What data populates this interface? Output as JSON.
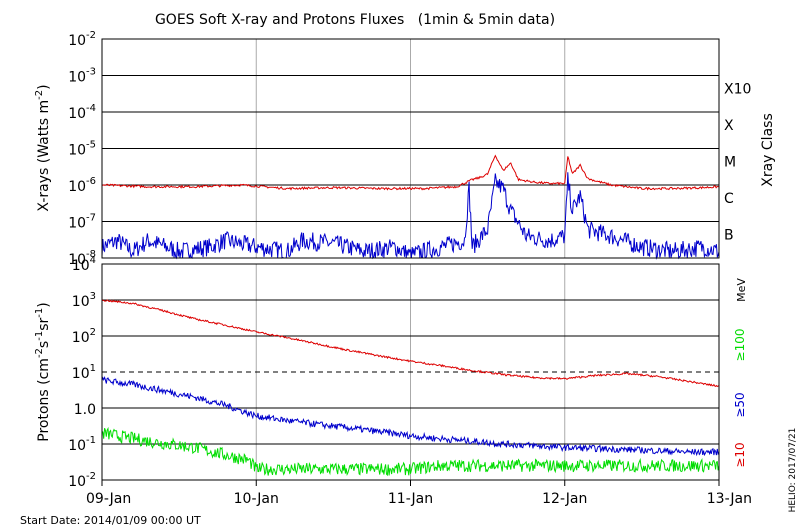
{
  "chart_data": [
    {
      "type": "line",
      "title": "GOES Soft X-ray and Protons Fluxes   (1min & 5min data)",
      "ylabel": "X-rays (Watts m^-2)",
      "y_scale": "log",
      "ylim": [
        1e-08,
        0.01
      ],
      "y_ticks": [
        {
          "base": "10",
          "exp": "-2"
        },
        {
          "base": "10",
          "exp": "-3"
        },
        {
          "base": "10",
          "exp": "-4"
        },
        {
          "base": "10",
          "exp": "-5"
        },
        {
          "base": "10",
          "exp": "-6"
        },
        {
          "base": "10",
          "exp": "-7"
        },
        {
          "base": "10",
          "exp": "-8"
        }
      ],
      "right_axis_label": "Xray Class",
      "class_labels": [
        {
          "label": "X10",
          "flux": 0.001
        },
        {
          "label": "X",
          "flux": 0.0001
        },
        {
          "label": "M",
          "flux": 1e-05
        },
        {
          "label": "C",
          "flux": 1e-06
        },
        {
          "label": "B",
          "flux": 1e-07
        }
      ],
      "grid": "horizontal at each decade, vertical at each day",
      "series": [
        {
          "color": "#dd0000",
          "x": [
            0,
            0.3,
            0.6,
            0.9,
            1.2,
            1.5,
            1.8,
            2.1,
            2.3,
            2.4,
            2.45,
            2.5,
            2.55,
            2.6,
            2.65,
            2.7,
            2.8,
            2.9,
            3.0,
            3.02,
            3.05,
            3.1,
            3.15,
            3.2,
            3.3,
            3.5,
            3.7,
            3.9,
            4.0
          ],
          "y": [
            1e-06,
            9e-07,
            9e-07,
            1e-06,
            8e-07,
            8.5e-07,
            8e-07,
            8e-07,
            9e-07,
            1.4e-06,
            1.6e-06,
            2e-06,
            6.5e-06,
            2.5e-06,
            4e-06,
            1.4e-06,
            1.2e-06,
            1.1e-06,
            1.1e-06,
            6e-06,
            2e-06,
            3.5e-06,
            1.5e-06,
            1.3e-06,
            1e-06,
            8e-07,
            8e-07,
            8.5e-07,
            9e-07
          ]
        },
        {
          "color": "#0000cc",
          "x": [
            0,
            0.1,
            0.2,
            0.3,
            0.5,
            0.7,
            0.8,
            1.0,
            1.2,
            1.3,
            1.5,
            1.7,
            1.9,
            2.0,
            2.2,
            2.35,
            2.38,
            2.4,
            2.5,
            2.55,
            2.6,
            2.65,
            2.75,
            2.9,
            3.0,
            3.02,
            3.05,
            3.1,
            3.15,
            3.3,
            3.5,
            3.7,
            3.9,
            4.0
          ],
          "y": [
            2e-08,
            3e-08,
            1.5e-08,
            3e-08,
            1.5e-08,
            2e-08,
            3e-08,
            2e-08,
            1.5e-08,
            3e-08,
            2.5e-08,
            1.5e-08,
            2e-08,
            1.2e-08,
            2e-08,
            3e-08,
            8e-07,
            2e-08,
            6e-08,
            1.2e-06,
            8e-07,
            2e-07,
            4e-08,
            3e-08,
            4e-08,
            1.3e-06,
            2e-07,
            5e-07,
            6e-08,
            4e-08,
            2e-08,
            1.5e-08,
            2e-08,
            1.5e-08
          ]
        }
      ]
    },
    {
      "type": "line",
      "ylabel": "Protons (cm^-2 s^-1 sr^-1)",
      "y_scale": "log",
      "ylim": [
        0.01,
        10000
      ],
      "y_ticks": [
        {
          "base": "10",
          "exp": "4"
        },
        {
          "base": "10",
          "exp": "3"
        },
        {
          "base": "10",
          "exp": "2"
        },
        {
          "base": "10",
          "exp": "1"
        },
        {
          "base": "10",
          "exp": "0"
        },
        {
          "base": "10",
          "exp": "-1"
        },
        {
          "base": "10",
          "exp": "-2"
        }
      ],
      "y_tick_text": [
        "",
        "",
        "",
        "",
        "0",
        "",
        ""
      ],
      "threshold": 10,
      "right_axis_label": "MeV",
      "x_ticks": [
        "09-Jan",
        "10-Jan",
        "11-Jan",
        "12-Jan",
        "13-Jan"
      ],
      "series": [
        {
          "name": "≥100",
          "color": "#00dd00",
          "x": [
            0,
            0.3,
            0.6,
            0.8,
            0.95,
            1.0,
            1.3,
            1.6,
            1.9,
            2.0,
            2.2,
            2.5,
            2.8,
            3.1,
            3.4,
            3.7,
            4.0
          ],
          "y": [
            0.2,
            0.12,
            0.08,
            0.05,
            0.035,
            0.02,
            0.02,
            0.02,
            0.02,
            0.02,
            0.025,
            0.025,
            0.025,
            0.025,
            0.025,
            0.025,
            0.025
          ]
        },
        {
          "name": "≥50",
          "color": "#0000cc",
          "x": [
            0,
            0.2,
            0.4,
            0.6,
            0.8,
            1.0,
            1.2,
            1.4,
            1.6,
            1.8,
            2.0,
            2.2,
            2.4,
            2.6,
            2.8,
            3.0,
            3.2,
            3.4,
            3.6,
            3.8,
            4.0
          ],
          "y": [
            6.0,
            4.5,
            3.0,
            2.0,
            1.2,
            0.6,
            0.45,
            0.35,
            0.28,
            0.22,
            0.17,
            0.14,
            0.12,
            0.1,
            0.09,
            0.08,
            0.075,
            0.07,
            0.065,
            0.06,
            0.06
          ]
        },
        {
          "name": "≥10",
          "color": "#dd0000",
          "x": [
            0,
            0.2,
            0.4,
            0.6,
            0.8,
            1.0,
            1.2,
            1.4,
            1.6,
            1.8,
            2.0,
            2.2,
            2.4,
            2.6,
            2.8,
            3.0,
            3.2,
            3.4,
            3.6,
            3.8,
            4.0
          ],
          "y": [
            1000,
            800,
            500,
            300,
            200,
            130,
            90,
            60,
            40,
            28,
            20,
            15,
            11,
            8.5,
            7.0,
            6.5,
            8.0,
            9.0,
            7.5,
            5.5,
            4.0
          ]
        }
      ]
    }
  ],
  "footer": {
    "start_date": "Start Date: 2014/01/09 00:00 UT",
    "credit": "HELIO: 2017/07/21"
  }
}
